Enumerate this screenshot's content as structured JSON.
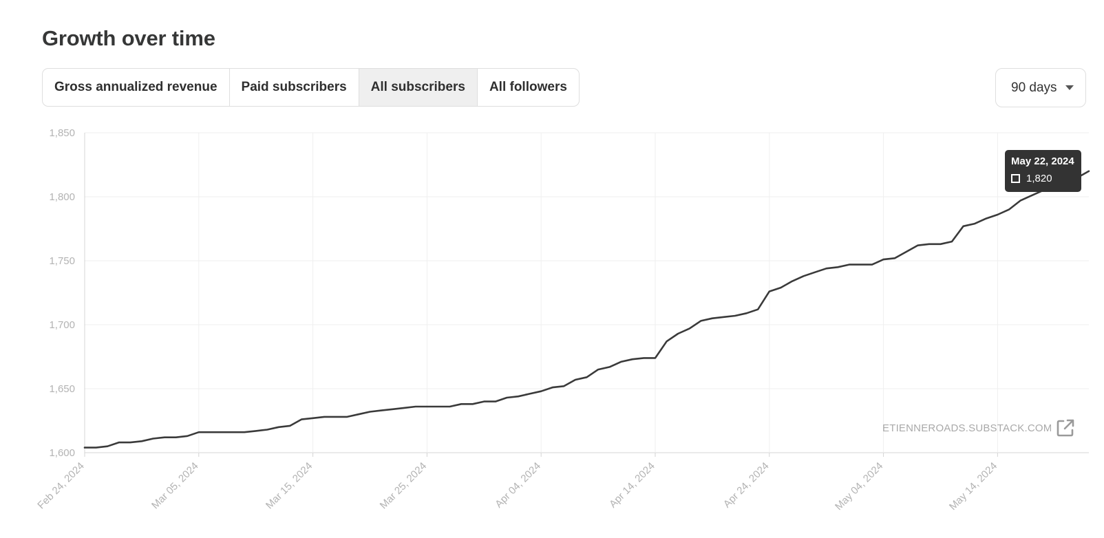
{
  "header": {
    "title": "Growth over time"
  },
  "tabs": [
    {
      "label": "Gross annualized revenue",
      "active": false
    },
    {
      "label": "Paid subscribers",
      "active": false
    },
    {
      "label": "All subscribers",
      "active": true
    },
    {
      "label": "All followers",
      "active": false
    }
  ],
  "range_select": {
    "value": "90 days",
    "icon": "chevron-down-icon"
  },
  "tooltip": {
    "date": "May 22, 2024",
    "value": "1,820"
  },
  "watermark": {
    "text": "ETIENNEROADS.SUBSTACK.COM",
    "icon": "external-link-icon"
  },
  "colors": {
    "line": "#3a3a3a",
    "grid": "#efefef",
    "axis": "#d4d4d4",
    "tick_text": "#b3b3b3",
    "active_tab": "#efefef"
  },
  "chart_data": {
    "type": "line",
    "title": "",
    "xlabel": "",
    "ylabel": "",
    "ylim": [
      1600,
      1850
    ],
    "xlim": [
      "2024-02-24",
      "2024-05-22"
    ],
    "y_ticks": [
      1600,
      1650,
      1700,
      1750,
      1800,
      1850
    ],
    "y_tick_labels": [
      "1,600",
      "1,650",
      "1,700",
      "1,750",
      "1,800",
      "1,850"
    ],
    "x_ticks": [
      "2024-02-24",
      "2024-03-05",
      "2024-03-15",
      "2024-03-25",
      "2024-04-04",
      "2024-04-14",
      "2024-04-24",
      "2024-05-04",
      "2024-05-14"
    ],
    "x_tick_labels": [
      "Feb 24, 2024",
      "Mar 05, 2024",
      "Mar 15, 2024",
      "Mar 25, 2024",
      "Apr 04, 2024",
      "Apr 14, 2024",
      "Apr 24, 2024",
      "May 04, 2024",
      "May 14, 2024"
    ],
    "grid": true,
    "series": [
      {
        "values": [
          [
            "2024-02-24",
            1604
          ],
          [
            "2024-02-25",
            1604
          ],
          [
            "2024-02-26",
            1605
          ],
          [
            "2024-02-27",
            1608
          ],
          [
            "2024-02-28",
            1608
          ],
          [
            "2024-02-29",
            1609
          ],
          [
            "2024-03-01",
            1611
          ],
          [
            "2024-03-02",
            1612
          ],
          [
            "2024-03-03",
            1612
          ],
          [
            "2024-03-04",
            1613
          ],
          [
            "2024-03-05",
            1616
          ],
          [
            "2024-03-06",
            1616
          ],
          [
            "2024-03-07",
            1616
          ],
          [
            "2024-03-08",
            1616
          ],
          [
            "2024-03-09",
            1616
          ],
          [
            "2024-03-10",
            1617
          ],
          [
            "2024-03-11",
            1618
          ],
          [
            "2024-03-12",
            1620
          ],
          [
            "2024-03-13",
            1621
          ],
          [
            "2024-03-14",
            1626
          ],
          [
            "2024-03-15",
            1627
          ],
          [
            "2024-03-16",
            1628
          ],
          [
            "2024-03-17",
            1628
          ],
          [
            "2024-03-18",
            1628
          ],
          [
            "2024-03-19",
            1630
          ],
          [
            "2024-03-20",
            1632
          ],
          [
            "2024-03-21",
            1633
          ],
          [
            "2024-03-22",
            1634
          ],
          [
            "2024-03-23",
            1635
          ],
          [
            "2024-03-24",
            1636
          ],
          [
            "2024-03-25",
            1636
          ],
          [
            "2024-03-26",
            1636
          ],
          [
            "2024-03-27",
            1636
          ],
          [
            "2024-03-28",
            1638
          ],
          [
            "2024-03-29",
            1638
          ],
          [
            "2024-03-30",
            1640
          ],
          [
            "2024-03-31",
            1640
          ],
          [
            "2024-04-01",
            1643
          ],
          [
            "2024-04-02",
            1644
          ],
          [
            "2024-04-03",
            1646
          ],
          [
            "2024-04-04",
            1648
          ],
          [
            "2024-04-05",
            1651
          ],
          [
            "2024-04-06",
            1652
          ],
          [
            "2024-04-07",
            1657
          ],
          [
            "2024-04-08",
            1659
          ],
          [
            "2024-04-09",
            1665
          ],
          [
            "2024-04-10",
            1667
          ],
          [
            "2024-04-11",
            1671
          ],
          [
            "2024-04-12",
            1673
          ],
          [
            "2024-04-13",
            1674
          ],
          [
            "2024-04-14",
            1674
          ],
          [
            "2024-04-15",
            1687
          ],
          [
            "2024-04-16",
            1693
          ],
          [
            "2024-04-17",
            1697
          ],
          [
            "2024-04-18",
            1703
          ],
          [
            "2024-04-19",
            1705
          ],
          [
            "2024-04-20",
            1706
          ],
          [
            "2024-04-21",
            1707
          ],
          [
            "2024-04-22",
            1709
          ],
          [
            "2024-04-23",
            1712
          ],
          [
            "2024-04-24",
            1726
          ],
          [
            "2024-04-25",
            1729
          ],
          [
            "2024-04-26",
            1734
          ],
          [
            "2024-04-27",
            1738
          ],
          [
            "2024-04-28",
            1741
          ],
          [
            "2024-04-29",
            1744
          ],
          [
            "2024-04-30",
            1745
          ],
          [
            "2024-05-01",
            1747
          ],
          [
            "2024-05-02",
            1747
          ],
          [
            "2024-05-03",
            1747
          ],
          [
            "2024-05-04",
            1751
          ],
          [
            "2024-05-05",
            1752
          ],
          [
            "2024-05-06",
            1757
          ],
          [
            "2024-05-07",
            1762
          ],
          [
            "2024-05-08",
            1763
          ],
          [
            "2024-05-09",
            1763
          ],
          [
            "2024-05-10",
            1765
          ],
          [
            "2024-05-11",
            1777
          ],
          [
            "2024-05-12",
            1779
          ],
          [
            "2024-05-13",
            1783
          ],
          [
            "2024-05-14",
            1786
          ],
          [
            "2024-05-15",
            1790
          ],
          [
            "2024-05-16",
            1797
          ],
          [
            "2024-05-17",
            1801
          ],
          [
            "2024-05-18",
            1805
          ],
          [
            "2024-05-19",
            1806
          ],
          [
            "2024-05-20",
            1809
          ],
          [
            "2024-05-21",
            1815
          ],
          [
            "2024-05-22",
            1820
          ]
        ]
      }
    ]
  }
}
